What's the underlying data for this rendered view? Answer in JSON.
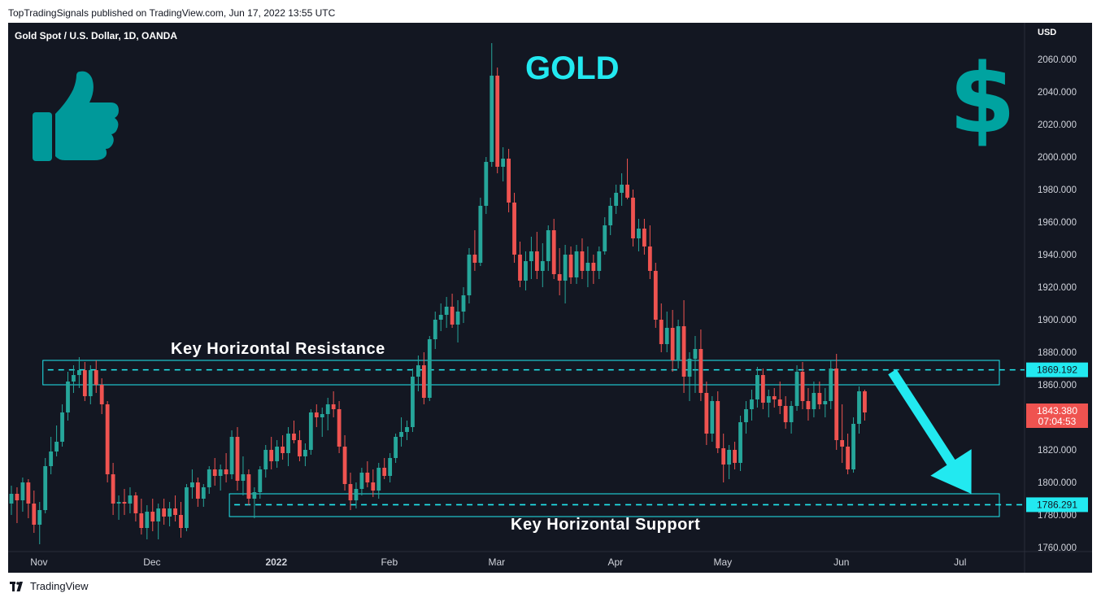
{
  "publication": "TopTradingSignals published on TradingView.com, Jun 17, 2022 13:55 UTC",
  "footer": {
    "brand": "TradingView",
    "logo_text": "17"
  },
  "overlay": {
    "title": "GOLD",
    "resistance_label": "Key Horizontal Resistance",
    "support_label": "Key Horizontal Support",
    "icons": [
      "thumbs-up-icon",
      "dollar-sign-icon",
      "down-arrow-icon"
    ]
  },
  "colors": {
    "background": "#131722",
    "up": "#26a69a",
    "down": "#ef5350",
    "accent": "#22e9f0"
  },
  "chart_data": {
    "type": "candlestick",
    "symbol": "Gold Spot / U.S. Dollar, 1D, OANDA",
    "currency": "USD",
    "ylim": [
      1760,
      2070
    ],
    "y_ticks": [
      1760,
      1780,
      1800,
      1820,
      1840,
      1860,
      1880,
      1900,
      1920,
      1940,
      1960,
      1980,
      2000,
      2020,
      2040,
      2060
    ],
    "y_tick_labels": [
      "1760.000",
      "1780.000",
      "1800.000",
      "1820.000",
      "1840.000",
      "1860.000",
      "1880.000",
      "1900.000",
      "1920.000",
      "1940.000",
      "1960.000",
      "1980.000",
      "2000.000",
      "2020.000",
      "2040.000",
      "2060.000"
    ],
    "x_labels": [
      {
        "bar": 2,
        "label": "Nov"
      },
      {
        "bar": 22,
        "label": "Dec"
      },
      {
        "bar": 44,
        "label": "2022"
      },
      {
        "bar": 64,
        "label": "Feb"
      },
      {
        "bar": 83,
        "label": "Mar"
      },
      {
        "bar": 104,
        "label": "Apr"
      },
      {
        "bar": 123,
        "label": "May"
      },
      {
        "bar": 144,
        "label": "Jun"
      },
      {
        "bar": 165,
        "label": "Jul"
      }
    ],
    "current_price": "1843.380",
    "countdown": "07:04:53",
    "levels": [
      {
        "name": "resistance",
        "value": 1869.192,
        "label": "1869.192",
        "zone": [
          1860,
          1875
        ],
        "from_bar": 5
      },
      {
        "name": "support",
        "value": 1786.291,
        "label": "1786.291",
        "zone": [
          1779,
          1793
        ],
        "from_bar": 38
      }
    ],
    "projection": {
      "from_bar": 155,
      "from_value": 1868,
      "to_bar": 169,
      "to_value": 1793
    },
    "candles": [
      [
        1787,
        1798,
        1780,
        1793
      ],
      [
        1793,
        1797,
        1775,
        1789
      ],
      [
        1789,
        1803,
        1782,
        1800
      ],
      [
        1800,
        1802,
        1778,
        1787
      ],
      [
        1787,
        1795,
        1769,
        1774
      ],
      [
        1774,
        1788,
        1762,
        1783
      ],
      [
        1783,
        1815,
        1781,
        1810
      ],
      [
        1810,
        1828,
        1805,
        1819
      ],
      [
        1819,
        1835,
        1816,
        1825
      ],
      [
        1825,
        1848,
        1822,
        1843
      ],
      [
        1843,
        1868,
        1838,
        1862
      ],
      [
        1862,
        1872,
        1855,
        1866
      ],
      [
        1866,
        1877,
        1858,
        1869
      ],
      [
        1869,
        1874,
        1850,
        1853
      ],
      [
        1853,
        1872,
        1848,
        1869
      ],
      [
        1869,
        1875,
        1855,
        1860
      ],
      [
        1860,
        1864,
        1842,
        1848
      ],
      [
        1848,
        1850,
        1800,
        1805
      ],
      [
        1805,
        1812,
        1780,
        1787
      ],
      [
        1787,
        1792,
        1777,
        1788
      ],
      [
        1788,
        1796,
        1780,
        1787
      ],
      [
        1787,
        1797,
        1781,
        1792
      ],
      [
        1792,
        1794,
        1776,
        1781
      ],
      [
        1781,
        1790,
        1768,
        1772
      ],
      [
        1772,
        1786,
        1765,
        1782
      ],
      [
        1782,
        1790,
        1770,
        1776
      ],
      [
        1776,
        1787,
        1765,
        1784
      ],
      [
        1784,
        1790,
        1774,
        1779
      ],
      [
        1779,
        1788,
        1773,
        1784
      ],
      [
        1784,
        1792,
        1776,
        1780
      ],
      [
        1780,
        1788,
        1766,
        1772
      ],
      [
        1772,
        1799,
        1770,
        1797
      ],
      [
        1797,
        1808,
        1790,
        1800
      ],
      [
        1800,
        1803,
        1785,
        1790
      ],
      [
        1790,
        1799,
        1785,
        1797
      ],
      [
        1797,
        1810,
        1793,
        1808
      ],
      [
        1808,
        1815,
        1798,
        1804
      ],
      [
        1804,
        1811,
        1795,
        1808
      ],
      [
        1808,
        1818,
        1800,
        1805
      ],
      [
        1805,
        1832,
        1802,
        1828
      ],
      [
        1828,
        1834,
        1795,
        1801
      ],
      [
        1801,
        1816,
        1792,
        1805
      ],
      [
        1805,
        1808,
        1786,
        1790
      ],
      [
        1790,
        1797,
        1778,
        1794
      ],
      [
        1794,
        1810,
        1790,
        1808
      ],
      [
        1808,
        1823,
        1803,
        1820
      ],
      [
        1820,
        1828,
        1808,
        1813
      ],
      [
        1813,
        1826,
        1809,
        1822
      ],
      [
        1822,
        1829,
        1814,
        1818
      ],
      [
        1818,
        1834,
        1810,
        1830
      ],
      [
        1830,
        1838,
        1824,
        1826
      ],
      [
        1826,
        1832,
        1813,
        1816
      ],
      [
        1816,
        1824,
        1810,
        1820
      ],
      [
        1820,
        1845,
        1817,
        1843
      ],
      [
        1843,
        1848,
        1834,
        1840
      ],
      [
        1840,
        1846,
        1828,
        1842
      ],
      [
        1842,
        1852,
        1832,
        1848
      ],
      [
        1848,
        1856,
        1840,
        1845
      ],
      [
        1845,
        1850,
        1818,
        1822
      ],
      [
        1822,
        1829,
        1795,
        1799
      ],
      [
        1799,
        1806,
        1783,
        1789
      ],
      [
        1789,
        1800,
        1784,
        1796
      ],
      [
        1796,
        1809,
        1792,
        1806
      ],
      [
        1806,
        1813,
        1797,
        1800
      ],
      [
        1800,
        1808,
        1791,
        1795
      ],
      [
        1795,
        1812,
        1790,
        1809
      ],
      [
        1809,
        1815,
        1802,
        1804
      ],
      [
        1804,
        1818,
        1800,
        1815
      ],
      [
        1815,
        1830,
        1812,
        1828
      ],
      [
        1828,
        1840,
        1822,
        1831
      ],
      [
        1831,
        1838,
        1826,
        1834
      ],
      [
        1834,
        1870,
        1831,
        1865
      ],
      [
        1865,
        1878,
        1856,
        1872
      ],
      [
        1872,
        1880,
        1848,
        1852
      ],
      [
        1852,
        1890,
        1850,
        1888
      ],
      [
        1888,
        1905,
        1882,
        1900
      ],
      [
        1900,
        1910,
        1893,
        1903
      ],
      [
        1903,
        1914,
        1895,
        1908
      ],
      [
        1908,
        1916,
        1895,
        1897
      ],
      [
        1897,
        1912,
        1886,
        1905
      ],
      [
        1905,
        1920,
        1898,
        1915
      ],
      [
        1915,
        1944,
        1910,
        1940
      ],
      [
        1940,
        1955,
        1930,
        1935
      ],
      [
        1935,
        1975,
        1933,
        1970
      ],
      [
        1970,
        2000,
        1965,
        1997
      ],
      [
        1997,
        2070,
        1994,
        2050
      ],
      [
        2050,
        2055,
        1990,
        1994
      ],
      [
        1994,
        2006,
        1985,
        1999
      ],
      [
        1999,
        2005,
        1966,
        1972
      ],
      [
        1972,
        1978,
        1935,
        1940
      ],
      [
        1940,
        1948,
        1920,
        1924
      ],
      [
        1924,
        1942,
        1918,
        1936
      ],
      [
        1936,
        1951,
        1925,
        1942
      ],
      [
        1942,
        1954,
        1925,
        1930
      ],
      [
        1930,
        1947,
        1920,
        1936
      ],
      [
        1936,
        1958,
        1930,
        1955
      ],
      [
        1955,
        1962,
        1925,
        1928
      ],
      [
        1928,
        1944,
        1915,
        1924
      ],
      [
        1924,
        1946,
        1910,
        1940
      ],
      [
        1940,
        1945,
        1922,
        1926
      ],
      [
        1926,
        1946,
        1922,
        1942
      ],
      [
        1942,
        1950,
        1925,
        1930
      ],
      [
        1930,
        1945,
        1920,
        1935
      ],
      [
        1935,
        1940,
        1922,
        1930
      ],
      [
        1930,
        1945,
        1925,
        1942
      ],
      [
        1942,
        1963,
        1940,
        1958
      ],
      [
        1958,
        1975,
        1952,
        1970
      ],
      [
        1970,
        1983,
        1965,
        1978
      ],
      [
        1978,
        1990,
        1970,
        1983
      ],
      [
        1983,
        1999,
        1974,
        1975
      ],
      [
        1975,
        1980,
        1945,
        1950
      ],
      [
        1950,
        1962,
        1942,
        1956
      ],
      [
        1956,
        1962,
        1940,
        1945
      ],
      [
        1945,
        1958,
        1925,
        1930
      ],
      [
        1930,
        1935,
        1895,
        1900
      ],
      [
        1900,
        1910,
        1880,
        1885
      ],
      [
        1885,
        1905,
        1880,
        1895
      ],
      [
        1895,
        1906,
        1868,
        1875
      ],
      [
        1875,
        1900,
        1870,
        1896
      ],
      [
        1896,
        1912,
        1855,
        1865
      ],
      [
        1865,
        1880,
        1850,
        1876
      ],
      [
        1876,
        1890,
        1855,
        1882
      ],
      [
        1882,
        1894,
        1850,
        1855
      ],
      [
        1855,
        1862,
        1823,
        1830
      ],
      [
        1830,
        1853,
        1825,
        1850
      ],
      [
        1850,
        1856,
        1818,
        1821
      ],
      [
        1821,
        1830,
        1800,
        1811
      ],
      [
        1811,
        1823,
        1802,
        1820
      ],
      [
        1820,
        1825,
        1808,
        1812
      ],
      [
        1812,
        1841,
        1807,
        1837
      ],
      [
        1837,
        1850,
        1830,
        1845
      ],
      [
        1845,
        1857,
        1838,
        1851
      ],
      [
        1851,
        1871,
        1846,
        1866
      ],
      [
        1866,
        1870,
        1845,
        1849
      ],
      [
        1849,
        1857,
        1840,
        1853
      ],
      [
        1853,
        1858,
        1846,
        1851
      ],
      [
        1851,
        1862,
        1842,
        1847
      ],
      [
        1847,
        1853,
        1833,
        1837
      ],
      [
        1837,
        1850,
        1830,
        1847
      ],
      [
        1847,
        1872,
        1844,
        1868
      ],
      [
        1868,
        1874,
        1845,
        1850
      ],
      [
        1850,
        1858,
        1838,
        1845
      ],
      [
        1845,
        1862,
        1840,
        1855
      ],
      [
        1855,
        1862,
        1845,
        1848
      ],
      [
        1848,
        1858,
        1840,
        1850
      ],
      [
        1850,
        1875,
        1845,
        1870
      ],
      [
        1870,
        1879,
        1820,
        1826
      ],
      [
        1826,
        1848,
        1812,
        1822
      ],
      [
        1822,
        1830,
        1805,
        1808
      ],
      [
        1808,
        1840,
        1806,
        1836
      ],
      [
        1836,
        1859,
        1830,
        1856
      ],
      [
        1856,
        1857,
        1838,
        1843
      ]
    ]
  }
}
